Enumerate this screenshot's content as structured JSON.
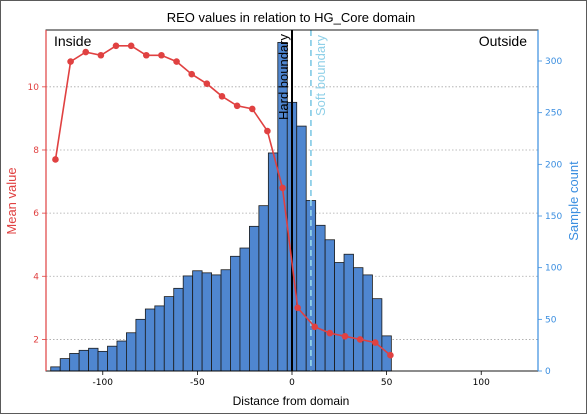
{
  "chart_data": {
    "type": "bar+line",
    "title": "REO values in relation to HG_Core domain",
    "xlabel": "Distance from domain",
    "ylabel_left": "Mean value",
    "ylabel_right": "Sample count",
    "xlim": [
      -130,
      130
    ],
    "ylim_left": [
      1.0,
      11.8
    ],
    "ylim_right": [
      0,
      330
    ],
    "x_ticks": [
      -100,
      -50,
      0,
      50,
      100
    ],
    "y_left_ticks": [
      2,
      4,
      6,
      8,
      10
    ],
    "y_right_ticks": [
      0,
      50,
      100,
      150,
      200,
      250,
      300
    ],
    "grid_left_y": true,
    "annotations": {
      "inside": "Inside",
      "outside": "Outside",
      "hard_boundary": "Hard boundary",
      "soft_boundary": "Soft boundary"
    },
    "hard_boundary_x": 0,
    "soft_boundary_x": 10,
    "histogram": {
      "bin_width": 5,
      "bins": [
        {
          "x0": -127.5,
          "count": 4
        },
        {
          "x0": -122.5,
          "count": 12
        },
        {
          "x0": -117.5,
          "count": 17
        },
        {
          "x0": -112.5,
          "count": 20
        },
        {
          "x0": -107.5,
          "count": 22
        },
        {
          "x0": -102.5,
          "count": 19
        },
        {
          "x0": -97.5,
          "count": 24
        },
        {
          "x0": -92.5,
          "count": 29
        },
        {
          "x0": -87.5,
          "count": 37
        },
        {
          "x0": -82.5,
          "count": 50
        },
        {
          "x0": -77.5,
          "count": 60
        },
        {
          "x0": -72.5,
          "count": 63
        },
        {
          "x0": -67.5,
          "count": 72
        },
        {
          "x0": -62.5,
          "count": 80
        },
        {
          "x0": -57.5,
          "count": 92
        },
        {
          "x0": -52.5,
          "count": 97
        },
        {
          "x0": -47.5,
          "count": 95
        },
        {
          "x0": -42.5,
          "count": 93
        },
        {
          "x0": -37.5,
          "count": 98
        },
        {
          "x0": -32.5,
          "count": 111
        },
        {
          "x0": -27.5,
          "count": 119
        },
        {
          "x0": -22.5,
          "count": 140
        },
        {
          "x0": -17.5,
          "count": 160
        },
        {
          "x0": -12.5,
          "count": 211
        },
        {
          "x0": -7.5,
          "count": 318
        },
        {
          "x0": -2.5,
          "count": 260
        },
        {
          "x0": 2.5,
          "count": 237
        },
        {
          "x0": 7.5,
          "count": 165
        },
        {
          "x0": 12.5,
          "count": 141
        },
        {
          "x0": 17.5,
          "count": 127
        },
        {
          "x0": 22.5,
          "count": 105
        },
        {
          "x0": 27.5,
          "count": 113
        },
        {
          "x0": 32.5,
          "count": 100
        },
        {
          "x0": 37.5,
          "count": 93
        },
        {
          "x0": 42.5,
          "count": 70
        },
        {
          "x0": 47.5,
          "count": 34
        }
      ]
    },
    "series": [
      {
        "x": [
          -125,
          -117,
          -109,
          -101,
          -93,
          -85,
          -77,
          -69,
          -61,
          -53,
          -45,
          -37,
          -29,
          -21,
          -13,
          -5,
          3,
          12,
          20,
          28,
          36,
          44,
          52
        ],
        "y": [
          7.7,
          10.8,
          11.1,
          11.0,
          11.3,
          11.3,
          11.0,
          11.0,
          10.8,
          10.4,
          10.1,
          9.7,
          9.4,
          9.3,
          8.6,
          6.8,
          3.0,
          2.4,
          2.2,
          2.1,
          2.0,
          1.9,
          1.5
        ]
      }
    ],
    "colors": {
      "bars": "#4f86d0",
      "bar_edge": "#1b1b1b",
      "line": "#e04141",
      "left_axis": "#e04141",
      "right_axis": "#3a8ee0",
      "soft_boundary": "#8fd0e8",
      "hard_boundary": "#000000",
      "grid": "#a8a8a8"
    }
  }
}
